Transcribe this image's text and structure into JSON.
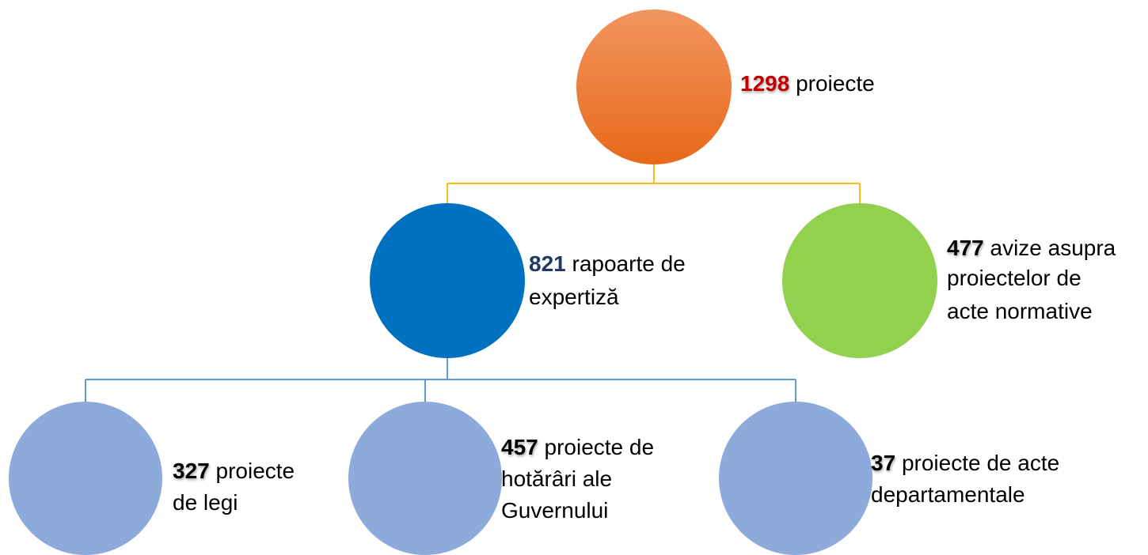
{
  "nodes": [
    {
      "number": 1298,
      "lines": [
        "proiecte"
      ]
    },
    {
      "number": 821,
      "lines": [
        "rapoarte de",
        "expertiză"
      ]
    },
    {
      "number": 477,
      "lines": [
        "avize asupra",
        "proiectelor de",
        "acte normative"
      ]
    },
    {
      "number": 327,
      "lines": [
        "proiecte",
        "de legi"
      ]
    },
    {
      "number": 457,
      "lines": [
        "proiecte de",
        "hotărâri ale",
        "Guvernului"
      ]
    },
    {
      "number": 37,
      "lines": [
        "proiecte de acte",
        "departamentale"
      ]
    }
  ]
}
